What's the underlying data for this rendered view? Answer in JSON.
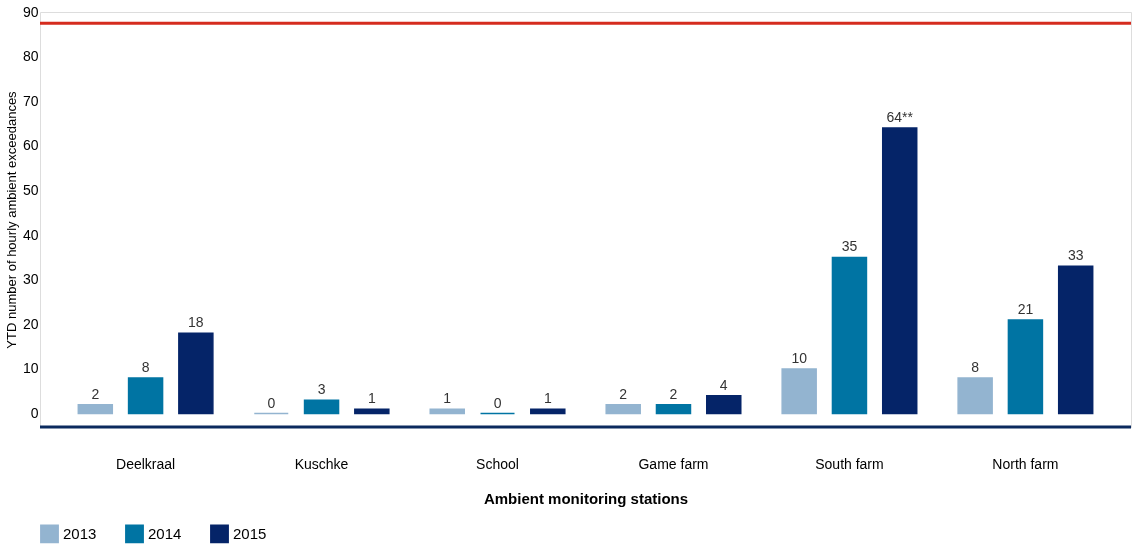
{
  "chart_data": {
    "type": "bar",
    "xlabel": "Ambient monitoring stations",
    "ylabel": "YTD number of hourly ambient exceedances",
    "categories": [
      "Deelkraal",
      "Kuschke",
      "School",
      "Game farm",
      "South farm",
      "North farm"
    ],
    "series": [
      {
        "name": "2013",
        "color": "#93b4d0",
        "values": [
          2,
          0,
          1,
          2,
          10,
          8
        ],
        "value_labels": [
          "2",
          "0",
          "1",
          "2",
          "10",
          "8"
        ]
      },
      {
        "name": "2014",
        "color": "#0074a3",
        "values": [
          8,
          3,
          0,
          2,
          35,
          21
        ],
        "value_labels": [
          "8",
          "3",
          "0",
          "2",
          "35",
          "21"
        ]
      },
      {
        "name": "2015",
        "color": "#052468",
        "values": [
          18,
          1,
          1,
          4,
          64,
          33
        ],
        "value_labels": [
          "18",
          "1",
          "1",
          "4",
          "64**",
          "33"
        ]
      }
    ],
    "ylim": [
      -3,
      90
    ],
    "yticks": [
      0,
      10,
      20,
      30,
      40,
      50,
      60,
      70,
      80,
      90
    ],
    "ref_lines": [
      {
        "axis": "y",
        "value": 87.5,
        "color": "#d52b1e"
      }
    ],
    "grid": false,
    "legend": "bottom left"
  }
}
